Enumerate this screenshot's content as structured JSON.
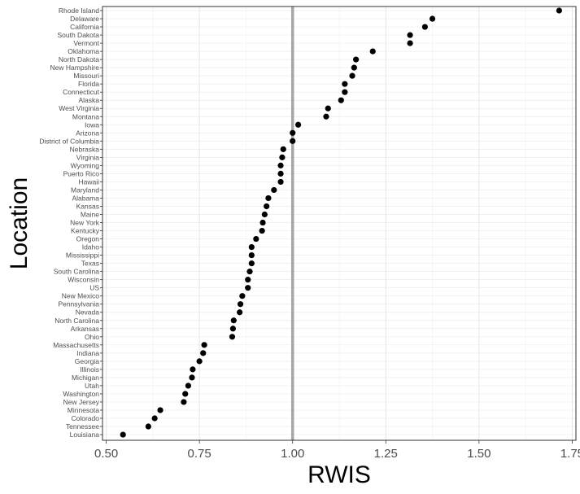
{
  "chart_data": {
    "type": "scatter",
    "title": "",
    "xlabel": "RWIS",
    "ylabel": "Location",
    "xlim": [
      0.49,
      1.76
    ],
    "x_ticks": [
      0.5,
      0.75,
      1.0,
      1.25,
      1.5,
      1.75
    ],
    "x_tick_labels": [
      "0.50",
      "0.75",
      "1.00",
      "1.25",
      "1.50",
      "1.75"
    ],
    "reference_line": {
      "x": 1.0,
      "color": "#a6a6a6"
    },
    "grid": true,
    "legend": "none",
    "point_color": "#000000",
    "categories": [
      "Rhode Island",
      "Delaware",
      "California",
      "South Dakota",
      "Vermont",
      "Oklahoma",
      "North Dakota",
      "New Hampshire",
      "Missouri",
      "Florida",
      "Connecticut",
      "Alaska",
      "West Virginia",
      "Montana",
      "Iowa",
      "Arizona",
      "District of Columbia",
      "Nebraska",
      "Virginia",
      "Wyoming",
      "Puerto Rico",
      "Hawaii",
      "Maryland",
      "Alabama",
      "Kansas",
      "Maine",
      "New York",
      "Kentucky",
      "Oregon",
      "Idaho",
      "Mississippi",
      "Texas",
      "South Carolina",
      "Wisconsin",
      "US",
      "New Mexico",
      "Pennsylvania",
      "Nevada",
      "North Carolina",
      "Arkansas",
      "Ohio",
      "Massachusetts",
      "Indiana",
      "Georgia",
      "Illinois",
      "Michigan",
      "Utah",
      "Washington",
      "New Jersey",
      "Minnesota",
      "Colorado",
      "Tennessee",
      "Louisiana"
    ],
    "values": [
      1.715,
      1.375,
      1.355,
      1.315,
      1.315,
      1.215,
      1.17,
      1.165,
      1.16,
      1.14,
      1.14,
      1.13,
      1.095,
      1.09,
      1.015,
      1.0,
      1.0,
      0.975,
      0.972,
      0.968,
      0.968,
      0.968,
      0.95,
      0.935,
      0.93,
      0.925,
      0.92,
      0.918,
      0.902,
      0.89,
      0.89,
      0.89,
      0.885,
      0.88,
      0.88,
      0.865,
      0.86,
      0.858,
      0.842,
      0.84,
      0.838,
      0.763,
      0.76,
      0.75,
      0.732,
      0.73,
      0.72,
      0.712,
      0.708,
      0.645,
      0.63,
      0.613,
      0.545
    ]
  }
}
